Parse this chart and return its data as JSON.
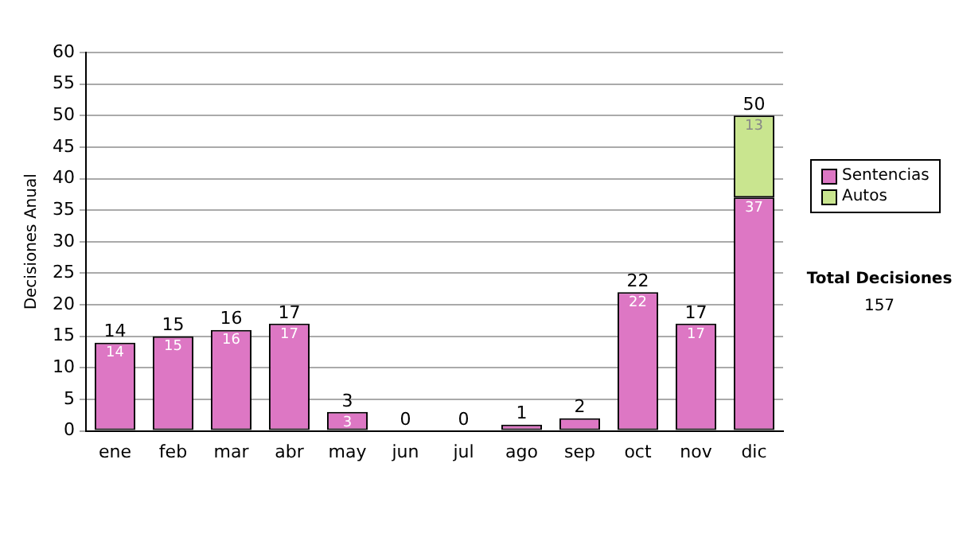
{
  "chart_data": {
    "type": "bar",
    "stacked": true,
    "ylabel": "Decisiones Anual",
    "categories": [
      "ene",
      "feb",
      "mar",
      "abr",
      "may",
      "jun",
      "jul",
      "ago",
      "sep",
      "oct",
      "nov",
      "dic"
    ],
    "series": [
      {
        "name": "Sentencias",
        "color": "#dd77c4",
        "values": [
          14,
          15,
          16,
          17,
          3,
          0,
          0,
          1,
          2,
          22,
          17,
          37
        ],
        "value_labels": [
          "14",
          "15",
          "16",
          "17",
          "3",
          null,
          null,
          null,
          null,
          "22",
          "17",
          "37"
        ]
      },
      {
        "name": "Autos",
        "color": "#c9e58f",
        "values": [
          0,
          0,
          0,
          0,
          0,
          0,
          0,
          0,
          0,
          0,
          0,
          13
        ],
        "value_labels": [
          null,
          null,
          null,
          null,
          null,
          null,
          null,
          null,
          null,
          null,
          null,
          "13"
        ]
      }
    ],
    "totals": [
      "14",
      "15",
      "16",
      "17",
      "3",
      "0",
      "0",
      "1",
      "2",
      "22",
      "17",
      "50"
    ],
    "ylim": [
      0,
      60
    ],
    "yticks": [
      0,
      5,
      10,
      15,
      20,
      25,
      30,
      35,
      40,
      45,
      50,
      55,
      60
    ],
    "grid": "y",
    "legend": "right",
    "annotations": [
      "Total Decisiones",
      "157"
    ]
  }
}
